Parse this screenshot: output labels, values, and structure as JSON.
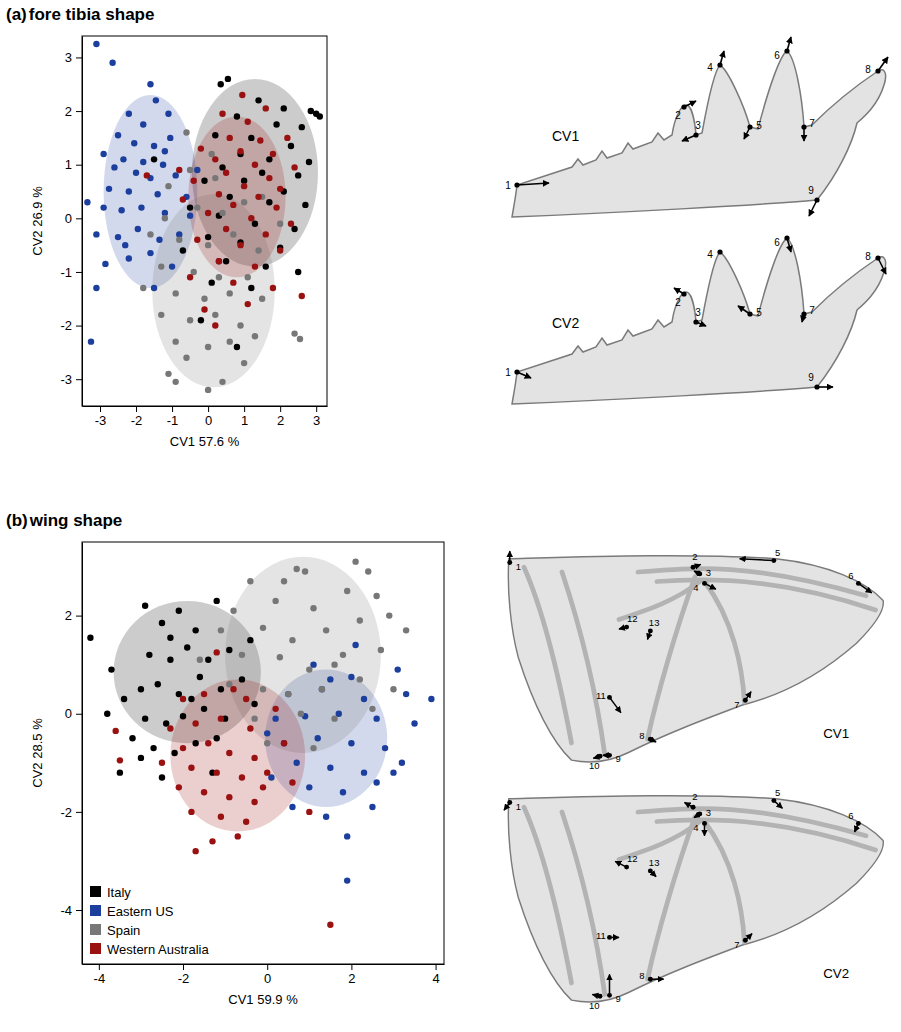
{
  "chart_data": [
    {
      "type": "scatter",
      "panel_label": "(a)",
      "title": "fore tibia shape",
      "x_label": "CV1 57.6 %",
      "y_label": "CV2 26.9 %",
      "xlim": [
        -3.5,
        3.3
      ],
      "ylim": [
        -3.5,
        3.4
      ],
      "xticks": [
        -3,
        -2,
        -1,
        0,
        1,
        2,
        3
      ],
      "yticks": [
        -3,
        -2,
        -1,
        0,
        1,
        2,
        3
      ],
      "series": [
        {
          "color": "#000000",
          "ellipse": {
            "cx": 1.3,
            "cy": 0.85,
            "rx": 1.75,
            "ry": 1.75
          },
          "x": [
            0.35,
            0.55,
            1.4,
            2.1,
            2.85,
            3.1,
            0.8,
            1.9,
            2.6,
            0.2,
            1.2,
            2.3,
            0.9,
            1.7,
            2.8,
            0.4,
            1.5,
            2.5,
            -0.1,
            1.0,
            2.1,
            0.6,
            1.7,
            2.7,
            -0.5,
            0.3,
            1.3,
            2.4,
            0,
            0.9,
            2.0,
            -0.7,
            0.5,
            1.6,
            2.5,
            0.1,
            1.2,
            -1.5,
            -0.2,
            0.8,
            3.0
          ],
          "values": [
            2.5,
            2.6,
            2.2,
            2.05,
            2.0,
            1.9,
            1.9,
            1.75,
            1.7,
            1.55,
            1.5,
            1.35,
            1.2,
            1.1,
            1.05,
            0.95,
            0.85,
            0.8,
            0.7,
            0.7,
            0.5,
            0.4,
            0.3,
            0.25,
            0.2,
            0.05,
            -0.1,
            -0.2,
            -0.35,
            -0.45,
            -0.55,
            -0.6,
            -0.8,
            -0.9,
            -1.0,
            -1.2,
            -1.3,
            1.1,
            -1.9,
            -2.4,
            1.95
          ]
        },
        {
          "color": "#1c3f9e",
          "ellipse": {
            "cx": -1.6,
            "cy": 0.5,
            "rx": 1.3,
            "ry": 1.8
          },
          "x": [
            -3.1,
            -2.65,
            -1.6,
            -1.45,
            -2.2,
            -1.1,
            -1.8,
            -2.5,
            -2.05,
            -1.5,
            -1.05,
            -2.9,
            -2.35,
            -1.8,
            -1.25,
            -2.6,
            -2.0,
            -1.6,
            -0.9,
            -3.35,
            -2.75,
            -2.2,
            -1.4,
            -0.6,
            -2.9,
            -2.4,
            -1.85,
            -1.2,
            -0.5,
            -3.1,
            -2.5,
            -1.95,
            -1.35,
            -0.8,
            -2.85,
            -2.2,
            -1.6,
            -1.0,
            -1.5,
            -3.1,
            -3.25,
            -0.3,
            0.3,
            -2.3,
            -1.2
          ],
          "values": [
            3.25,
            2.9,
            2.5,
            2.2,
            1.95,
            1.95,
            1.75,
            1.55,
            1.4,
            1.35,
            1.5,
            1.2,
            1.1,
            1.05,
            1.0,
            0.95,
            0.85,
            0.75,
            0.8,
            0.3,
            0.55,
            0.5,
            0.45,
            0.4,
            0.2,
            0.15,
            0.2,
            0.1,
            0.05,
            -0.3,
            -0.35,
            -0.2,
            -0.4,
            -0.3,
            -0.85,
            -0.75,
            -0.65,
            -0.9,
            -1.3,
            -1.3,
            -2.3,
            0.9,
            -0.8,
            -0.5,
            1.25
          ]
        },
        {
          "color": "#777777",
          "ellipse": {
            "cx": 0.15,
            "cy": -1.35,
            "rx": 1.7,
            "ry": 1.8
          },
          "x": [
            -1.1,
            -0.5,
            0.2,
            -1.2,
            -0.3,
            0.4,
            1.0,
            -1.6,
            -0.8,
            0,
            0.7,
            1.4,
            -1.3,
            -0.4,
            0.3,
            1.1,
            -1.8,
            -0.9,
            -0.1,
            0.6,
            1.5,
            -1.3,
            -0.5,
            0.2,
            0.9,
            -0.9,
            0,
            0.6,
            1.3,
            -0.6,
            -1.1,
            -0.9,
            0,
            0.4,
            1.0,
            2.4,
            2.55,
            -0.6,
            0.1,
            2.0,
            1.5
          ],
          "values": [
            0.6,
            0.9,
            0.75,
            0,
            0.2,
            0.1,
            0.3,
            -0.3,
            -0.4,
            -0.5,
            -0.3,
            -0.6,
            -0.9,
            -1.0,
            -1.1,
            -1.1,
            -1.3,
            -1.4,
            -1.5,
            -1.4,
            -1.5,
            -1.8,
            -1.9,
            -1.8,
            -2.0,
            -2.3,
            -2.4,
            -2.3,
            -2.2,
            -2.6,
            -2.9,
            -3.05,
            -3.2,
            -3.05,
            -2.7,
            -2.15,
            -2.25,
            1.6,
            1.2,
            -0.1,
            0.4
          ]
        },
        {
          "color": "#9a1111",
          "ellipse": {
            "cx": 0.8,
            "cy": 0.4,
            "rx": 1.35,
            "ry": 1.5
          },
          "x": [
            -1.7,
            0.95,
            1.6,
            0.4,
            1.1,
            2.2,
            0.6,
            1.45,
            -0.2,
            0.9,
            1.8,
            0.2,
            1.3,
            2.4,
            0.5,
            1.7,
            -0.4,
            1.0,
            2.0,
            0.3,
            1.4,
            -0.7,
            0.7,
            1.9,
            0,
            1.2,
            2.3,
            0.5,
            1.6,
            -0.3,
            0.9,
            2.0,
            0.3,
            1.3,
            -0.5,
            0.7,
            1.8,
            -0.1,
            0.2,
            2.6,
            1.1,
            -0.8
          ],
          "values": [
            0.8,
            2.3,
            2.05,
            1.95,
            1.8,
            1.5,
            1.5,
            1.45,
            1.3,
            1.25,
            1.2,
            1.1,
            1.0,
            0.95,
            0.85,
            0.75,
            0.7,
            0.6,
            0.55,
            0.45,
            0.4,
            0.35,
            0.25,
            0.2,
            0.1,
            0,
            -0.1,
            -0.2,
            -0.3,
            -0.4,
            -0.5,
            -0.6,
            -0.8,
            -0.9,
            -1.1,
            -1.2,
            -1.3,
            -1.7,
            -2.0,
            -1.45,
            -1.6,
            0.9
          ]
        }
      ]
    },
    {
      "type": "scatter",
      "panel_label": "(b)",
      "title": "wing shape",
      "x_label": "CV1 59.9 %",
      "y_label": "CV2 28.5 %",
      "xlim": [
        -4.4,
        4.2
      ],
      "ylim": [
        -5.1,
        3.5
      ],
      "xticks": [
        -4,
        -2,
        0,
        2,
        4
      ],
      "yticks": [
        -4,
        -2,
        0,
        2
      ],
      "legend": "bottom-left",
      "series": [
        {
          "name": "Italy",
          "color": "#000000",
          "ellipse": {
            "cx": -1.9,
            "cy": 0.85,
            "rx": 1.75,
            "ry": 1.45
          },
          "x": [
            -4.2,
            -3.7,
            -3.4,
            -3.2,
            -3.5,
            -2.9,
            -2.5,
            -2.1,
            -1.7,
            -1.2,
            -2.8,
            -2.3,
            -1.9,
            -1.4,
            -0.9,
            -3.0,
            -2.6,
            -2.1,
            -1.6,
            -1.1,
            -0.6,
            -2.9,
            -2.4,
            -2.0,
            -1.5,
            -1.0,
            -2.7,
            -2.2,
            -1.7,
            -3.0,
            -1.3,
            -0.4,
            -3.8,
            -2.3,
            -1.8,
            -0.3,
            -2.5,
            -1.2
          ],
          "values": [
            1.55,
            0.9,
            0.3,
            -0.5,
            -1.2,
            2.2,
            1.85,
            2.1,
            1.7,
            2.3,
            1.2,
            1.1,
            1.35,
            1.1,
            1.3,
            0.5,
            0.6,
            0.4,
            0.75,
            0.5,
            0.7,
            -0.1,
            -0.2,
            -0.05,
            0.1,
            -0.1,
            -0.7,
            -0.8,
            -0.6,
            -0.9,
            -1.2,
            1.5,
            0,
            1.55,
            0.3,
            0.2,
            -1.3,
            -0.5
          ]
        },
        {
          "name": "Eastern US",
          "color": "#1c3f9e",
          "ellipse": {
            "cx": 1.4,
            "cy": -0.5,
            "rx": 1.45,
            "ry": 1.4
          },
          "x": [
            3.9,
            1.1,
            2.0,
            3.1,
            0.5,
            1.3,
            2.3,
            3.3,
            0.2,
            0.9,
            1.7,
            2.6,
            3.5,
            0.4,
            1.2,
            2.0,
            2.8,
            3.2,
            0.7,
            1.5,
            2.3,
            0.1,
            1.0,
            1.8,
            2.6,
            0.6,
            1.4,
            1.9,
            1.9,
            2.5,
            3.0,
            2.1,
            0,
            1.5
          ],
          "values": [
            0.3,
            1.0,
            0.75,
            0.9,
            0.4,
            0.5,
            0.3,
            0.4,
            -0.1,
            -0.05,
            0,
            -0.1,
            -0.2,
            -0.6,
            -0.5,
            -0.6,
            -0.7,
            -1.0,
            -1.0,
            -1.1,
            -1.2,
            -1.3,
            -1.5,
            -1.6,
            -1.4,
            -1.9,
            -2.1,
            -2.5,
            -3.4,
            -1.9,
            -1.2,
            1.4,
            -0.4,
            0.7
          ]
        },
        {
          "name": "Spain",
          "color": "#777777",
          "ellipse": {
            "cx": 0.85,
            "cy": 1.2,
            "rx": 1.85,
            "ry": 2.0
          },
          "x": [
            -0.4,
            0.7,
            0.9,
            2.1,
            2.4,
            -0.8,
            0.2,
            1.1,
            1.9,
            2.6,
            -1.1,
            -0.1,
            0.6,
            1.4,
            2.2,
            -0.6,
            0.3,
            1.0,
            1.8,
            2.7,
            -0.9,
            -0.1,
            0.5,
            1.3,
            2.2,
            3.0,
            -0.3,
            0.8,
            1.6,
            2.5,
            0,
            1.1,
            -1.6,
            3.3,
            2.9,
            0.4,
            1.6
          ],
          "values": [
            2.7,
            2.95,
            2.9,
            3.1,
            2.9,
            2.1,
            2.3,
            2.15,
            2.5,
            2.4,
            1.7,
            1.75,
            1.5,
            1.7,
            1.9,
            1.2,
            1.15,
            0.9,
            1.2,
            1.3,
            0.6,
            0.5,
            0.4,
            0.5,
            0.7,
            0.5,
            -0.1,
            0,
            -0.1,
            0.1,
            -0.6,
            -0.7,
            1.1,
            1.7,
            2.0,
            2.7,
            1.0
          ]
        },
        {
          "name": "Western Australia",
          "color": "#9a1111",
          "ellipse": {
            "cx": -0.7,
            "cy": -0.85,
            "rx": 1.6,
            "ry": 1.55
          },
          "x": [
            -1.2,
            -0.8,
            -3.6,
            -3.5,
            -2.0,
            -1.5,
            -0.5,
            -2.3,
            -1.7,
            -1.1,
            -0.4,
            0.2,
            -2.0,
            -1.4,
            -0.9,
            -0.3,
            0.4,
            -1.8,
            -1.2,
            -0.6,
            0,
            0.6,
            -2.1,
            -1.5,
            -0.9,
            -0.3,
            -1.8,
            -1.1,
            -0.5,
            -1.3,
            -0.7,
            -1.7,
            1.0,
            1.5,
            -0.1,
            -2.5
          ],
          "values": [
            1.25,
            0.5,
            -0.35,
            -0.95,
            0.3,
            0.4,
            0.3,
            -0.3,
            -0.2,
            -0.1,
            -0.3,
            0.1,
            -0.7,
            -0.6,
            -0.8,
            -0.9,
            -0.6,
            -1.1,
            -1.2,
            -1.3,
            -1.2,
            -1.4,
            -1.5,
            -1.6,
            -1.7,
            -1.8,
            -2.0,
            -2.1,
            -2.2,
            -2.6,
            -2.5,
            -2.8,
            -2.0,
            -4.3,
            -1.5,
            -1.0
          ]
        }
      ]
    }
  ],
  "shape_diagrams": [
    [
      {
        "label": "CV1",
        "landmarks": [
          "1",
          "2",
          "3",
          "4",
          "5",
          "6",
          "7",
          "8",
          "9"
        ]
      },
      {
        "label": "CV2",
        "landmarks": [
          "1",
          "2",
          "3",
          "4",
          "5",
          "6",
          "7",
          "8",
          "9"
        ]
      }
    ],
    [
      {
        "label": "CV1",
        "landmarks": [
          "1",
          "2",
          "3",
          "4",
          "5",
          "6",
          "7",
          "8",
          "9",
          "10",
          "11",
          "12",
          "13"
        ]
      },
      {
        "label": "CV2",
        "landmarks": [
          "1",
          "2",
          "3",
          "4",
          "5",
          "6",
          "7",
          "8",
          "9",
          "10",
          "11",
          "12",
          "13"
        ]
      }
    ]
  ]
}
